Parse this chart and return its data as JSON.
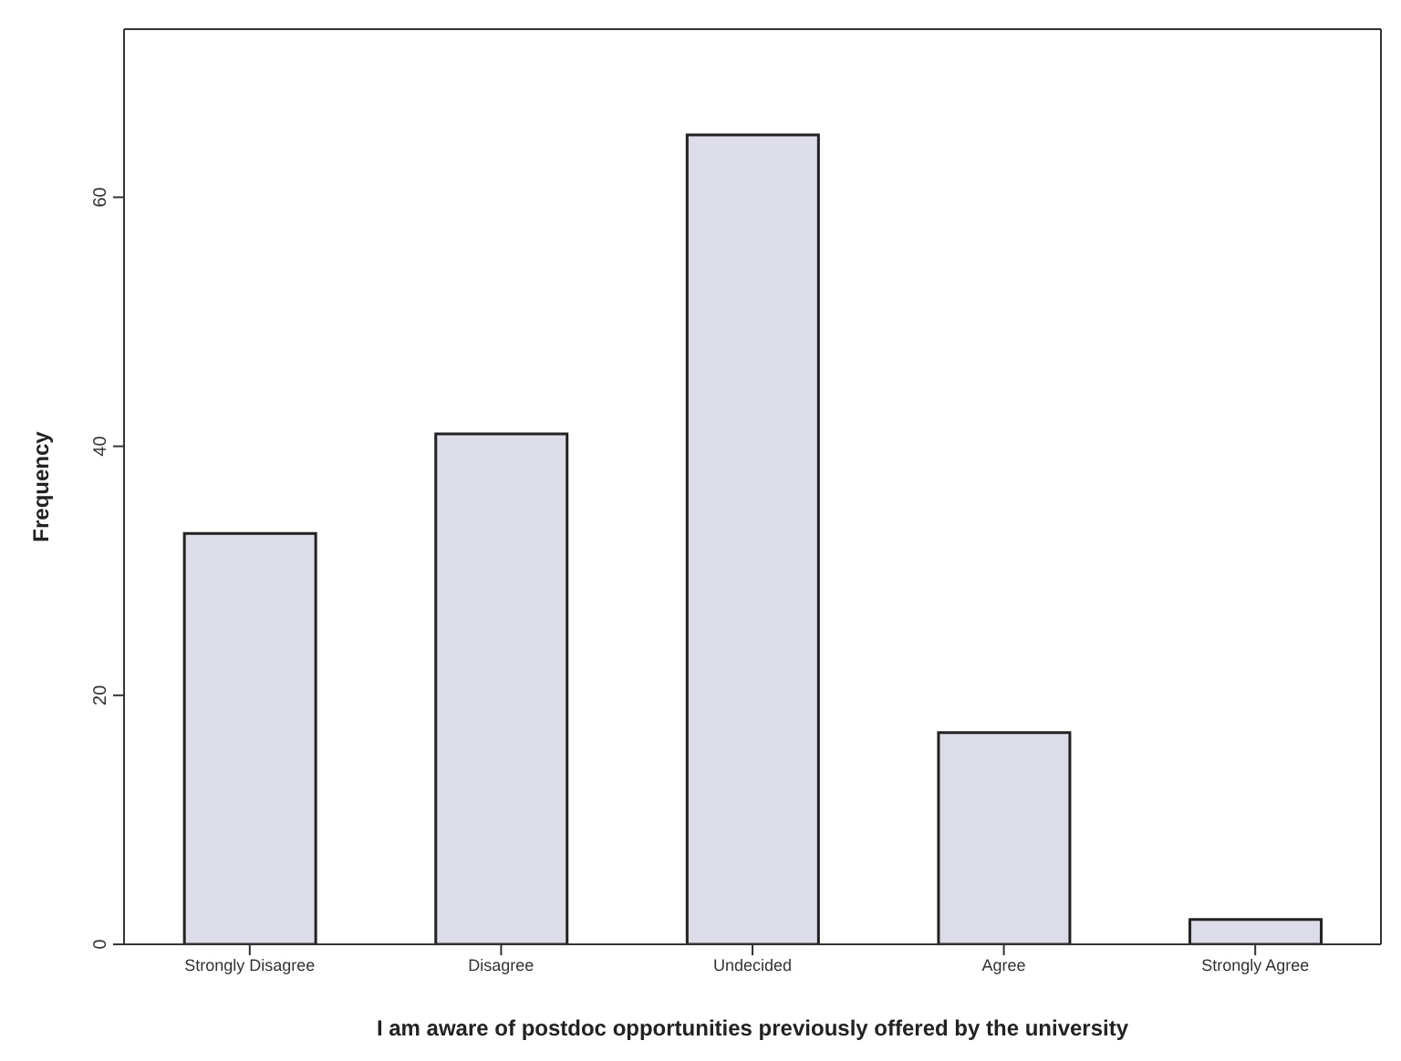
{
  "chart_data": {
    "type": "bar",
    "xlabel": "I am aware of postdoc opportunities previously offered by the university",
    "ylabel": "Frequency",
    "categories": [
      "Strongly Disagree",
      "Disagree",
      "Undecided",
      "Agree",
      "Strongly Agree"
    ],
    "values": [
      33,
      41,
      65,
      17,
      2
    ],
    "color": "#dcdde8",
    "ylim": [
      0,
      73.5
    ],
    "yticks": [
      0,
      20,
      40,
      60
    ],
    "grid": false
  }
}
